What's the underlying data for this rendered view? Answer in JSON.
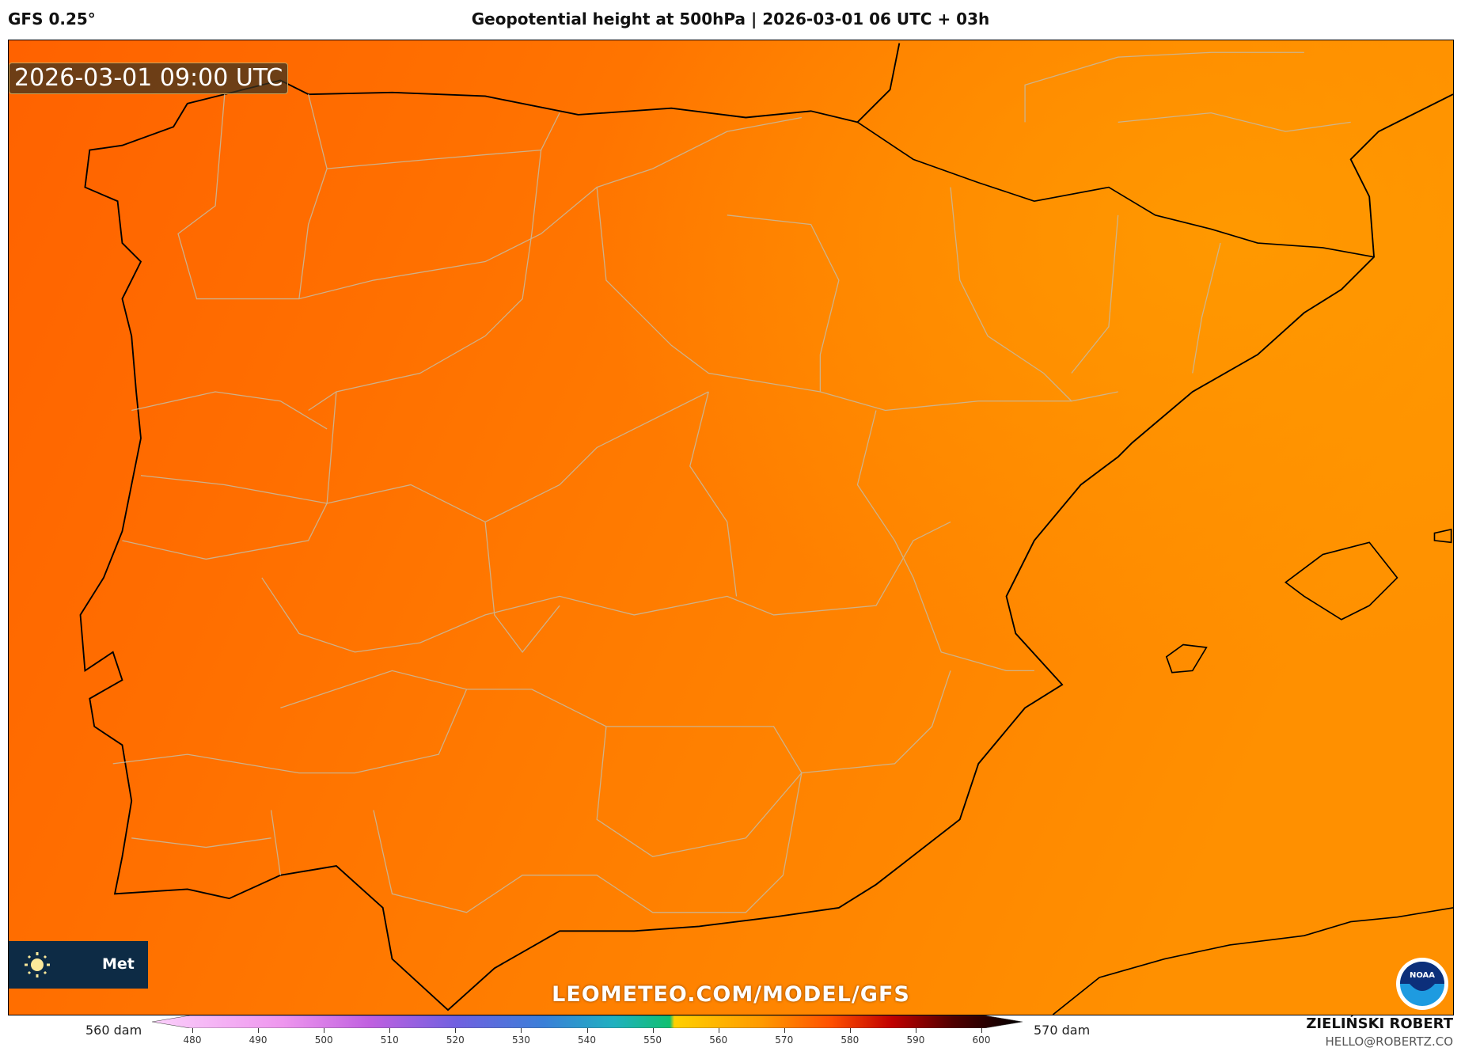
{
  "header": {
    "model": "GFS 0.25°",
    "title": "Geopotential height at 500hPa | 2026-03-01 06 UTC + 03h"
  },
  "map": {
    "valid_time": "2026-03-01 09:00 UTC",
    "watermark": "LEOMETEO.COM/MODEL/GFS",
    "brand_text": "Met",
    "logo": "NOAA",
    "colors": {
      "ocean_land_low": "#ff6a00",
      "ocean_land_mid": "#ff7a00",
      "ocean_land_high": "#ff9200",
      "coastline": "#000000",
      "borders": "#c8b89a"
    }
  },
  "colorbar": {
    "left_label": "560 dam",
    "right_label": "570 dam",
    "ticks": [
      "480",
      "490",
      "500",
      "510",
      "520",
      "530",
      "540",
      "550",
      "560",
      "570",
      "580",
      "590",
      "600"
    ],
    "colors": [
      "#fbd0fb",
      "#ee96ee",
      "#c060e0",
      "#7060e0",
      "#3a7fd8",
      "#20b0c0",
      "#10c070",
      "#ffd000",
      "#ff9a00",
      "#ff5000",
      "#c00000",
      "#500000",
      "#000000"
    ]
  },
  "footer": {
    "author": "ZIELIŃSKI ROBERT",
    "email": "HELLO@ROBERTZ.CO"
  }
}
